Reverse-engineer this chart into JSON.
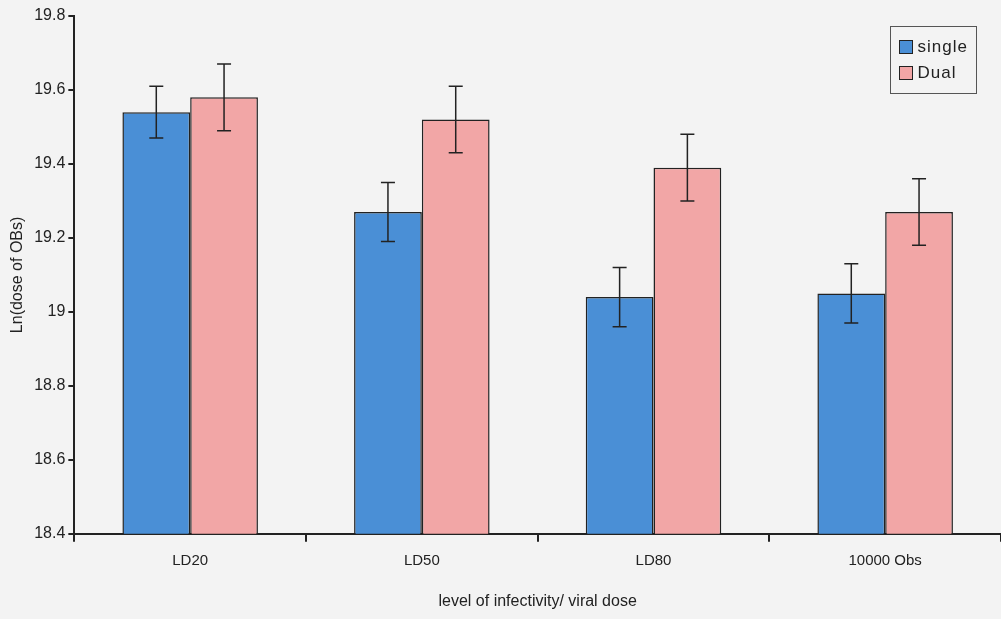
{
  "chart_data": {
    "type": "bar",
    "xlabel": "level of infectivity/ viral dose",
    "ylabel": "Ln(dose of OBs)",
    "categories": [
      "LD20",
      "LD50",
      "LD80",
      "10000 Obs"
    ],
    "series": [
      {
        "name": "single",
        "color": "#4a8fd6",
        "values": [
          19.54,
          19.27,
          19.04,
          19.05
        ],
        "errors": [
          0.07,
          0.08,
          0.08,
          0.08
        ]
      },
      {
        "name": "Dual",
        "color": "#f2a6a6",
        "values": [
          19.58,
          19.52,
          19.39,
          19.27
        ],
        "errors": [
          0.09,
          0.09,
          0.09,
          0.09
        ]
      }
    ],
    "ylim": [
      18.4,
      19.8
    ],
    "yticks": [
      18.4,
      18.6,
      18.8,
      19,
      19.2,
      19.4,
      19.6,
      19.8
    ],
    "grid": false,
    "legend": "top right"
  }
}
